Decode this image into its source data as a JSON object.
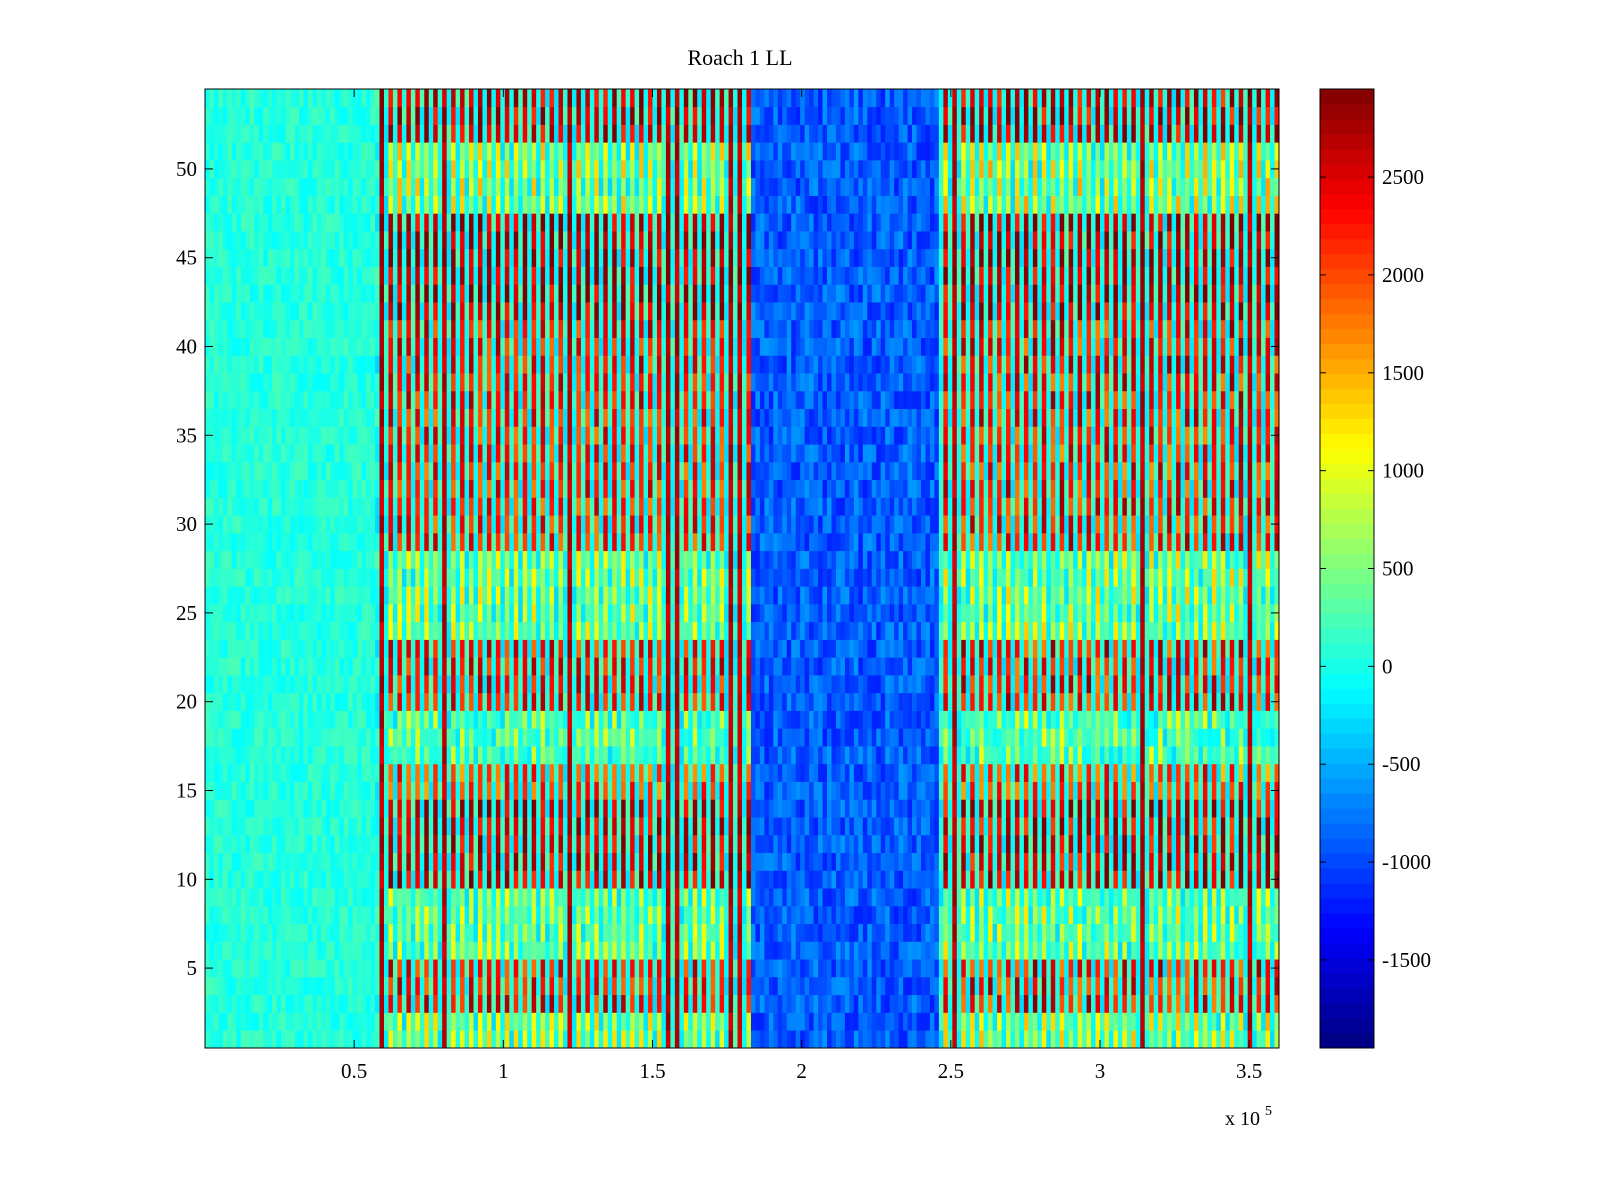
{
  "chart_data": {
    "type": "heatmap",
    "title": "Roach 1 LL",
    "xlabel": "",
    "ylabel": "",
    "x_multiplier": "x 10",
    "x_multiplier_exponent": "5",
    "xlim": [
      0,
      360000
    ],
    "ylim": [
      0.5,
      54.5
    ],
    "x_ticks": [
      0.5,
      1,
      1.5,
      2,
      2.5,
      3,
      3.5
    ],
    "x_tick_labels": [
      "0.5",
      "1",
      "1.5",
      "2",
      "2.5",
      "3",
      "3.5"
    ],
    "y_ticks": [
      5,
      10,
      15,
      20,
      25,
      30,
      35,
      40,
      45,
      50
    ],
    "y_tick_labels": [
      "5",
      "10",
      "15",
      "20",
      "25",
      "30",
      "35",
      "40",
      "45",
      "50"
    ],
    "rows": 54,
    "colorbar": {
      "colormap": "jet",
      "range": [
        -1950,
        2950
      ],
      "ticks": [
        -1500,
        -1000,
        -500,
        0,
        500,
        1000,
        1500,
        2000,
        2500
      ],
      "tick_labels": [
        "-1500",
        "-1000",
        "-500",
        "0",
        "500",
        "1000",
        "1500",
        "2000",
        "2500"
      ]
    },
    "x_segments": [
      {
        "x_start": 0,
        "x_end": 56000,
        "pattern": "uniform",
        "base": 60,
        "noise": 180
      },
      {
        "x_start": 56000,
        "x_end": 183000,
        "pattern": "striped",
        "base": 1500,
        "noise": 500
      },
      {
        "x_start": 183000,
        "x_end": 245000,
        "pattern": "uniform",
        "base": -900,
        "noise": 300
      },
      {
        "x_start": 245000,
        "x_end": 360000,
        "pattern": "striped",
        "base": 1200,
        "noise": 600
      }
    ],
    "hot_columns_x": [
      57000,
      80000,
      121000,
      156000,
      158000,
      177000,
      251000,
      314000,
      350000
    ],
    "row_band_levels": {
      "1-2": 900,
      "3-5": 2300,
      "6-9": 700,
      "10-14": 2600,
      "15-16": 2000,
      "17-19": 500,
      "20-23": 2300,
      "24-28": 800,
      "29-36": 2200,
      "37-41": 2300,
      "42-47": 2700,
      "48-51": 1000,
      "52-54": 2600
    }
  }
}
